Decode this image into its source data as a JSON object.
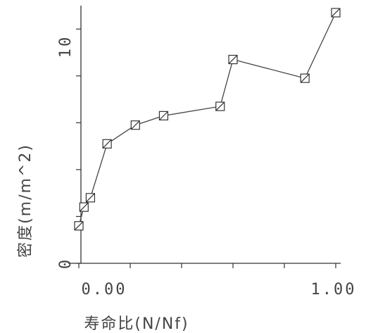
{
  "chart_data": {
    "type": "line",
    "xlabel": "寿命比(N/Nf)",
    "ylabel": "密度(m/m^2)",
    "xlim": [
      0,
      1.0
    ],
    "ylim": [
      0,
      11
    ],
    "x_tick_labels": [
      "0.00",
      "1.00"
    ],
    "y_tick_labels": [
      "0",
      "10"
    ],
    "grid": false,
    "marker": "square",
    "x": [
      0.0,
      0.02,
      0.045,
      0.11,
      0.22,
      0.33,
      0.55,
      0.6,
      0.88,
      1.0
    ],
    "y": [
      1.6,
      2.4,
      2.8,
      5.1,
      5.9,
      6.3,
      6.7,
      8.7,
      7.9,
      10.7
    ]
  }
}
